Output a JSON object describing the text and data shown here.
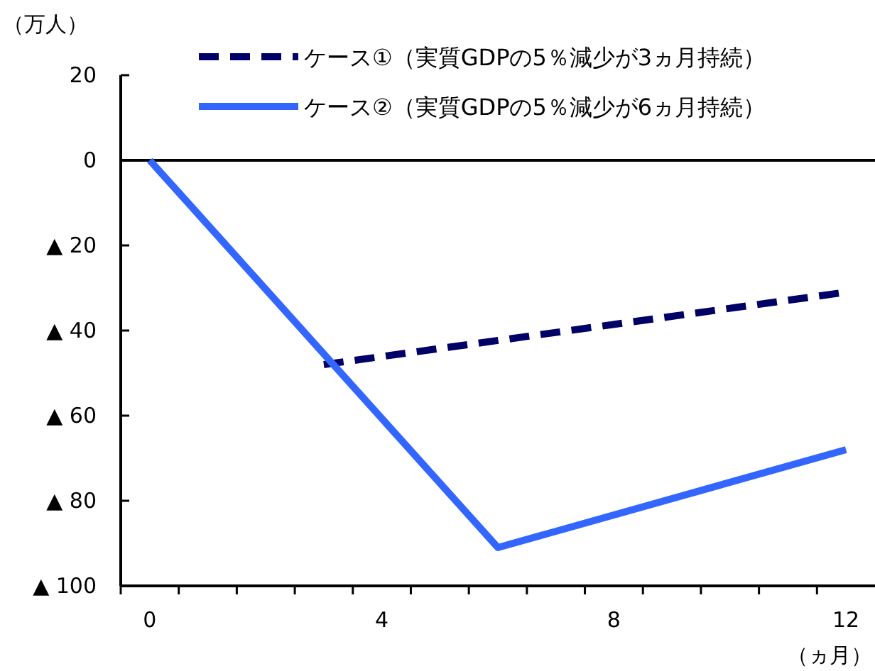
{
  "chart_data": {
    "type": "line",
    "ylabel": "（万人）",
    "xlabel": "（ヵ月）",
    "xlim": [
      -0.5,
      12.5
    ],
    "xticks": [
      {
        "value": -0.5,
        "label": null
      },
      {
        "value": 0,
        "label": "0"
      },
      {
        "value": 0.5,
        "label": null
      },
      {
        "value": 1.5,
        "label": null
      },
      {
        "value": 2.5,
        "label": null
      },
      {
        "value": 3.5,
        "label": null
      },
      {
        "value": 4,
        "label": "4"
      },
      {
        "value": 4.5,
        "label": null
      },
      {
        "value": 5.5,
        "label": null
      },
      {
        "value": 6.5,
        "label": null
      },
      {
        "value": 7.5,
        "label": null
      },
      {
        "value": 8,
        "label": "8"
      },
      {
        "value": 8.5,
        "label": null
      },
      {
        "value": 9.5,
        "label": null
      },
      {
        "value": 10.5,
        "label": null
      },
      {
        "value": 11.5,
        "label": null
      },
      {
        "value": 12,
        "label": "12"
      }
    ],
    "ylim": [
      -100,
      20
    ],
    "yticks": [
      {
        "value": 20,
        "label": "20"
      },
      {
        "value": 0,
        "label": "0"
      },
      {
        "value": -20,
        "label": "▲ 20"
      },
      {
        "value": -40,
        "label": "▲ 40"
      },
      {
        "value": -60,
        "label": "▲ 60"
      },
      {
        "value": -80,
        "label": "▲ 80"
      },
      {
        "value": -100,
        "label": "▲ 100"
      }
    ],
    "ref_lines": [
      {
        "axis": "y",
        "value": 0,
        "color": "#000000"
      }
    ],
    "legend": "top",
    "marker": "none",
    "series": [
      {
        "name": "ケース①（実質GDPの5％減少が3ヵ月持続）",
        "color": "#000066",
        "line_style": "dashed",
        "x": [
          3,
          12
        ],
        "values": [
          -48,
          -31
        ]
      },
      {
        "name": "ケース②（実質GDPの5％減少が6ヵ月持続）",
        "color": "#3366ff",
        "line_style": "solid",
        "x": [
          0,
          6,
          12
        ],
        "values": [
          0,
          -91,
          -68
        ]
      }
    ]
  }
}
